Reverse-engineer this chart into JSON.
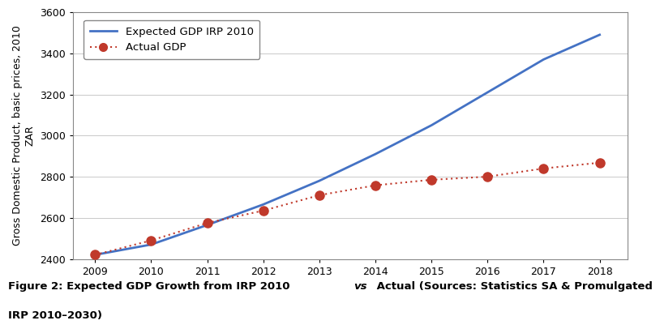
{
  "expected_years": [
    2009,
    2010,
    2011,
    2012,
    2013,
    2014,
    2015,
    2016,
    2017,
    2018
  ],
  "expected_gdp": [
    2420,
    2470,
    2565,
    2665,
    2780,
    2910,
    3050,
    3210,
    3370,
    3490
  ],
  "actual_years": [
    2009,
    2010,
    2011,
    2012,
    2013,
    2014,
    2015,
    2016,
    2017,
    2018
  ],
  "actual_gdp": [
    2420,
    2490,
    2575,
    2635,
    2710,
    2758,
    2785,
    2800,
    2840,
    2868
  ],
  "expected_color": "#4472c4",
  "actual_color": "#c0392b",
  "background_color": "#ffffff",
  "ylim": [
    2400,
    3600
  ],
  "yticks": [
    2400,
    2600,
    2800,
    3000,
    3200,
    3400,
    3600
  ],
  "xlim": [
    2008.6,
    2018.5
  ],
  "xticks": [
    2009,
    2010,
    2011,
    2012,
    2013,
    2014,
    2015,
    2016,
    2017,
    2018
  ],
  "ylabel": "Gross Domestic Product, basic prices, 2010\nZAR",
  "legend_expected": "Expected GDP IRP 2010",
  "legend_actual": "Actual GDP",
  "caption_bold": "Figure 2: Expected GDP Growth from IRP 2010 ",
  "caption_italic": "vs",
  "caption_normal": " Actual (Sources: Statistics SA & Promulgated\nIRP 2010–2030)",
  "grid_color": "#c0c0c0",
  "border_color": "#888888"
}
